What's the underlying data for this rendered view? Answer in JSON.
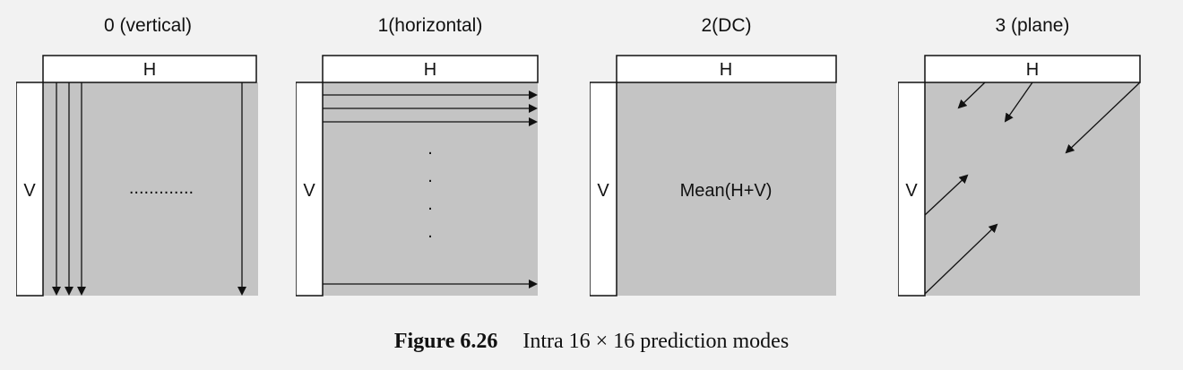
{
  "modes": [
    {
      "title": "0 (vertical)",
      "h_label": "H",
      "v_label": "V",
      "center_label": "............."
    },
    {
      "title": "1(horizontal)",
      "h_label": "H",
      "v_label": "V",
      "dots": [
        ".",
        ".",
        ".",
        "."
      ]
    },
    {
      "title": "2(DC)",
      "h_label": "H",
      "v_label": "V",
      "center_label": "Mean(H+V)"
    },
    {
      "title": "3 (plane)",
      "h_label": "H",
      "v_label": "V"
    }
  ],
  "caption": {
    "label": "Figure 6.26",
    "text": "Intra 16 × 16 prediction modes"
  },
  "colors": {
    "block_fill": "#c4c4c4",
    "border": "#111111",
    "strip_fill": "#ffffff",
    "background": "#f2f2f2"
  }
}
